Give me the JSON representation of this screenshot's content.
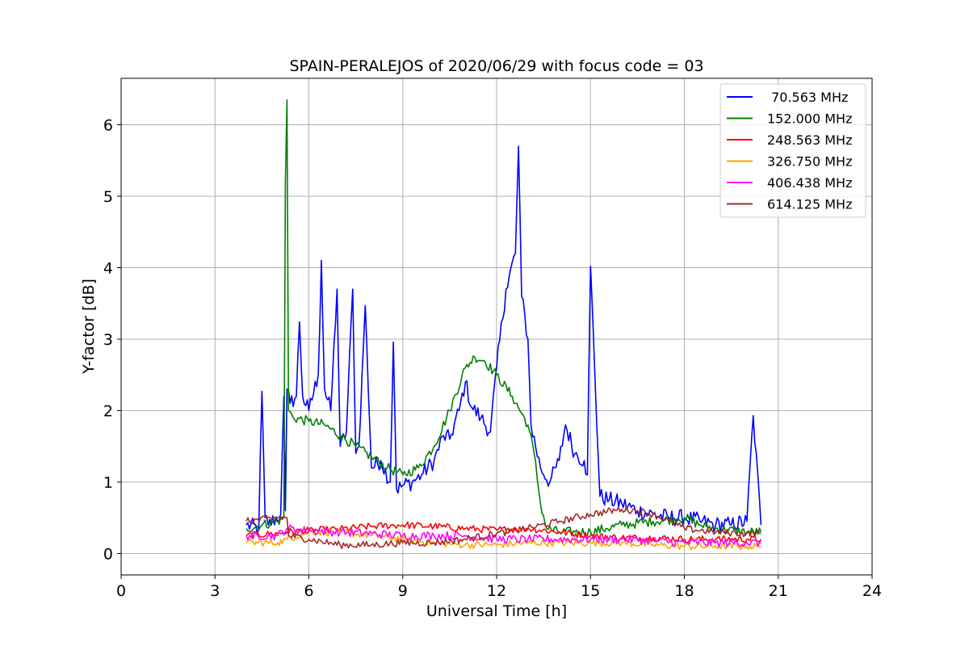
{
  "chart_data": {
    "type": "line",
    "title": "SPAIN-PERALEJOS of 2020/06/29 with focus code = 03",
    "xlabel": "Universal Time [h]",
    "ylabel": "Y-factor [dB]",
    "xlim": [
      0,
      24
    ],
    "ylim": [
      -0.3,
      6.65
    ],
    "xticks": [
      0,
      3,
      6,
      9,
      12,
      15,
      18,
      21,
      24
    ],
    "yticks": [
      0,
      1,
      2,
      3,
      4,
      5,
      6
    ],
    "xtick_labels": [
      "0",
      "3",
      "6",
      "9",
      "12",
      "15",
      "18",
      "21",
      "24"
    ],
    "ytick_labels": [
      "0",
      "1",
      "2",
      "3",
      "4",
      "5",
      "6"
    ],
    "grid": true,
    "legend_position": "top-right",
    "series": [
      {
        "name": " 70.563 MHz",
        "color": "#0000ff",
        "noise": 0.12,
        "x": [
          4.0,
          4.4,
          4.5,
          4.6,
          4.7,
          5.1,
          5.2,
          5.25,
          5.3,
          5.4,
          5.6,
          5.7,
          5.8,
          6.0,
          6.3,
          6.4,
          6.5,
          6.7,
          6.9,
          7.0,
          7.2,
          7.4,
          7.5,
          7.6,
          7.8,
          8.0,
          8.3,
          8.6,
          8.7,
          8.8,
          9.0,
          9.3,
          9.6,
          10.0,
          10.3,
          10.5,
          10.8,
          11.0,
          11.2,
          11.5,
          11.8,
          12.0,
          12.3,
          12.6,
          12.7,
          12.8,
          13.0,
          13.1,
          13.4,
          13.7,
          14.0,
          14.2,
          14.5,
          14.8,
          14.9,
          15.0,
          15.3,
          15.6,
          16.0,
          16.5,
          17.0,
          17.5,
          18.0,
          18.5,
          19.0,
          19.5,
          20.0,
          20.2,
          20.45
        ],
        "y": [
          0.4,
          0.35,
          2.27,
          0.5,
          0.4,
          0.55,
          2.2,
          0.6,
          2.3,
          2.1,
          2.2,
          3.24,
          2.2,
          2.0,
          2.5,
          4.1,
          2.3,
          2.0,
          3.7,
          1.5,
          1.7,
          3.7,
          1.4,
          1.5,
          3.47,
          1.2,
          1.3,
          1.0,
          2.96,
          0.9,
          0.95,
          1.0,
          1.1,
          1.3,
          1.65,
          1.6,
          2.0,
          2.4,
          2.05,
          1.9,
          1.7,
          2.6,
          3.7,
          4.2,
          5.7,
          3.6,
          3.0,
          1.8,
          1.2,
          1.0,
          1.3,
          1.8,
          1.4,
          1.3,
          1.1,
          4.02,
          0.8,
          0.75,
          0.7,
          0.6,
          0.55,
          0.5,
          0.5,
          0.45,
          0.4,
          0.4,
          0.45,
          1.93,
          0.4
        ]
      },
      {
        "name": "152.000 MHz",
        "color": "#008000",
        "noise": 0.07,
        "x": [
          4.0,
          4.5,
          5.0,
          5.2,
          5.25,
          5.3,
          5.35,
          5.5,
          6.0,
          6.5,
          7.0,
          7.5,
          8.0,
          8.5,
          9.0,
          9.5,
          10.0,
          10.5,
          11.0,
          11.3,
          11.6,
          12.0,
          12.5,
          13.0,
          13.2,
          13.4,
          13.6,
          14.0,
          14.5,
          15.0,
          15.5,
          16.0,
          17.0,
          18.0,
          18.5,
          19.0,
          20.0,
          20.45
        ],
        "y": [
          0.35,
          0.4,
          0.45,
          0.5,
          5.2,
          6.35,
          2.0,
          1.9,
          1.85,
          1.8,
          1.65,
          1.5,
          1.35,
          1.2,
          1.1,
          1.2,
          1.5,
          2.0,
          2.6,
          2.75,
          2.7,
          2.5,
          2.2,
          1.8,
          1.4,
          0.7,
          0.35,
          0.3,
          0.3,
          0.3,
          0.35,
          0.4,
          0.45,
          0.5,
          0.4,
          0.35,
          0.3,
          0.3
        ]
      },
      {
        "name": "248.563 MHz",
        "color": "#ff0000",
        "noise": 0.05,
        "x": [
          4.0,
          5.0,
          5.3,
          6.0,
          7.0,
          8.0,
          9.0,
          10.0,
          11.0,
          12.0,
          13.0,
          14.0,
          15.0,
          16.0,
          17.0,
          18.0,
          19.0,
          20.0,
          20.45
        ],
        "y": [
          0.25,
          0.28,
          0.3,
          0.32,
          0.34,
          0.38,
          0.4,
          0.38,
          0.35,
          0.33,
          0.35,
          0.3,
          0.25,
          0.22,
          0.22,
          0.2,
          0.2,
          0.2,
          0.2
        ]
      },
      {
        "name": "326.750 MHz",
        "color": "#ffa500",
        "noise": 0.05,
        "x": [
          4.0,
          5.0,
          5.3,
          6.0,
          7.0,
          8.0,
          9.0,
          10.0,
          11.0,
          12.0,
          13.0,
          14.0,
          15.0,
          16.0,
          17.0,
          18.0,
          19.0,
          20.0,
          20.45
        ],
        "y": [
          0.15,
          0.15,
          0.2,
          0.3,
          0.3,
          0.25,
          0.2,
          0.15,
          0.12,
          0.12,
          0.15,
          0.15,
          0.15,
          0.15,
          0.12,
          0.1,
          0.1,
          0.1,
          0.1
        ]
      },
      {
        "name": "406.438 MHz",
        "color": "#ff00ff",
        "noise": 0.06,
        "x": [
          4.0,
          5.0,
          5.3,
          6.0,
          7.0,
          8.0,
          9.0,
          10.0,
          11.0,
          12.0,
          13.0,
          14.0,
          15.0,
          16.0,
          17.0,
          18.0,
          19.0,
          20.0,
          20.45
        ],
        "y": [
          0.25,
          0.25,
          0.35,
          0.32,
          0.3,
          0.28,
          0.25,
          0.25,
          0.25,
          0.2,
          0.2,
          0.2,
          0.2,
          0.2,
          0.18,
          0.15,
          0.15,
          0.15,
          0.15
        ]
      },
      {
        "name": "614.125 MHz",
        "color": "#a52a2a",
        "noise": 0.05,
        "x": [
          4.0,
          5.0,
          5.3,
          5.35,
          6.0,
          7.0,
          8.0,
          9.0,
          10.0,
          11.0,
          12.0,
          13.0,
          14.0,
          15.0,
          16.0,
          16.5,
          17.0,
          18.0,
          19.0,
          20.0,
          20.45
        ],
        "y": [
          0.45,
          0.5,
          0.5,
          0.25,
          0.2,
          0.12,
          0.12,
          0.15,
          0.15,
          0.2,
          0.28,
          0.35,
          0.45,
          0.55,
          0.62,
          0.6,
          0.55,
          0.35,
          0.3,
          0.28,
          0.28
        ]
      }
    ]
  }
}
